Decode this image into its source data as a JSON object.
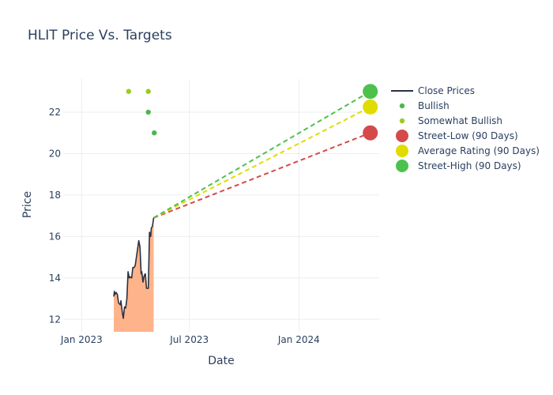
{
  "chart_data": {
    "type": "line",
    "title": "HLIT Price Vs. Targets",
    "xlabel": "Date",
    "ylabel": "Price",
    "x_ticks": [
      "Jan 2023",
      "Jul 2023",
      "Jan 2024"
    ],
    "x_tick_dates": [
      "2023-01-01",
      "2023-07-01",
      "2024-01-01"
    ],
    "xlim": [
      "2022-12-01",
      "2024-05-15"
    ],
    "y_ticks": [
      12,
      14,
      16,
      18,
      20,
      22
    ],
    "ylim": [
      11.4,
      23.6
    ],
    "grid": true,
    "legend_position": "right",
    "series": [
      {
        "name": "Close Prices",
        "kind": "line-area",
        "color": "#2a3142",
        "fill_color": "#ffb38a",
        "points": [
          [
            "2023-02-24",
            13.1
          ],
          [
            "2023-02-25",
            13.35
          ],
          [
            "2023-02-26",
            13.2
          ],
          [
            "2023-02-28",
            13.3
          ],
          [
            "2023-03-02",
            13.2
          ],
          [
            "2023-03-04",
            12.8
          ],
          [
            "2023-03-07",
            12.7
          ],
          [
            "2023-03-08",
            12.9
          ],
          [
            "2023-03-10",
            12.4
          ],
          [
            "2023-03-12",
            12.05
          ],
          [
            "2023-03-14",
            12.6
          ],
          [
            "2023-03-16",
            12.55
          ],
          [
            "2023-03-18",
            13.0
          ],
          [
            "2023-03-20",
            14.3
          ],
          [
            "2023-03-22",
            14.0
          ],
          [
            "2023-03-24",
            14.05
          ],
          [
            "2023-03-26",
            14.0
          ],
          [
            "2023-03-28",
            14.5
          ],
          [
            "2023-03-30",
            14.5
          ],
          [
            "2023-04-01",
            14.6
          ],
          [
            "2023-04-03",
            15.0
          ],
          [
            "2023-04-05",
            15.4
          ],
          [
            "2023-04-07",
            15.8
          ],
          [
            "2023-04-09",
            15.5
          ],
          [
            "2023-04-11",
            14.2
          ],
          [
            "2023-04-12",
            14.3
          ],
          [
            "2023-04-14",
            13.8
          ],
          [
            "2023-04-16",
            14.1
          ],
          [
            "2023-04-18",
            14.2
          ],
          [
            "2023-04-20",
            13.5
          ],
          [
            "2023-04-23",
            13.5
          ],
          [
            "2023-04-25",
            16.2
          ],
          [
            "2023-04-27",
            16.0
          ],
          [
            "2023-04-28",
            16.4
          ],
          [
            "2023-04-30",
            16.5
          ],
          [
            "2023-05-02",
            16.9
          ]
        ]
      },
      {
        "name": "Bullish",
        "kind": "markers",
        "color": "#4cb84c",
        "points": [
          [
            "2023-04-23",
            22.0
          ],
          [
            "2023-05-03",
            21.0
          ]
        ]
      },
      {
        "name": "Somewhat Bullish",
        "kind": "markers",
        "color": "#99cc1f",
        "points": [
          [
            "2023-03-21",
            23.0
          ],
          [
            "2023-04-23",
            23.0
          ]
        ]
      },
      {
        "name": "Street-Low (90 Days)",
        "kind": "target",
        "color": "#d44a4a",
        "start": [
          "2023-05-02",
          16.9
        ],
        "end": [
          "2024-04-30",
          21.0
        ]
      },
      {
        "name": "Average Rating (90 Days)",
        "kind": "target",
        "color": "#e0dc00",
        "start": [
          "2023-05-02",
          16.9
        ],
        "end": [
          "2024-04-30",
          22.25
        ]
      },
      {
        "name": "Street-High (90 Days)",
        "kind": "target",
        "color": "#4cc24c",
        "start": [
          "2023-05-02",
          16.9
        ],
        "end": [
          "2024-04-30",
          23.0
        ]
      }
    ]
  }
}
